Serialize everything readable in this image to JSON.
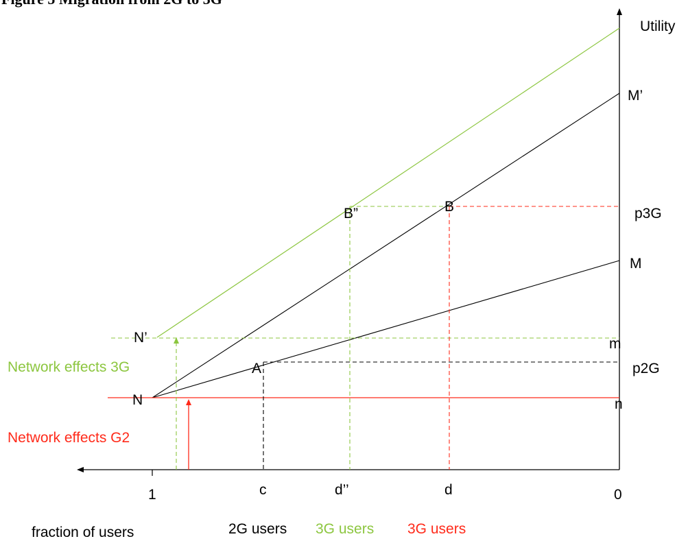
{
  "title": "Figure 5 Migration from 2G to 3G",
  "colors": {
    "black": "#000000",
    "green": "#8cc63f",
    "red": "#ff2a1a"
  },
  "axis": {
    "y_label": "Utility",
    "x_tick_labels": {
      "one": "1",
      "c": "c",
      "d2": "d’’",
      "d": "d",
      "zero": "0"
    },
    "x_caption": "fraction of users"
  },
  "points": {
    "M_prime": "M’",
    "M": "M",
    "p3G": "p3G",
    "p2G": "p2G",
    "m": "m",
    "n": "n",
    "B": "B",
    "B2": "B”",
    "A": "A",
    "N": "N",
    "N_prime": "N’"
  },
  "annotations": {
    "network_effects_3g": "Network effects 3G",
    "network_effects_g2": "Network effects G2"
  },
  "legend": {
    "users_2g": "2G users",
    "users_3g_green": "3G users",
    "users_3g_red": "3G users"
  }
}
